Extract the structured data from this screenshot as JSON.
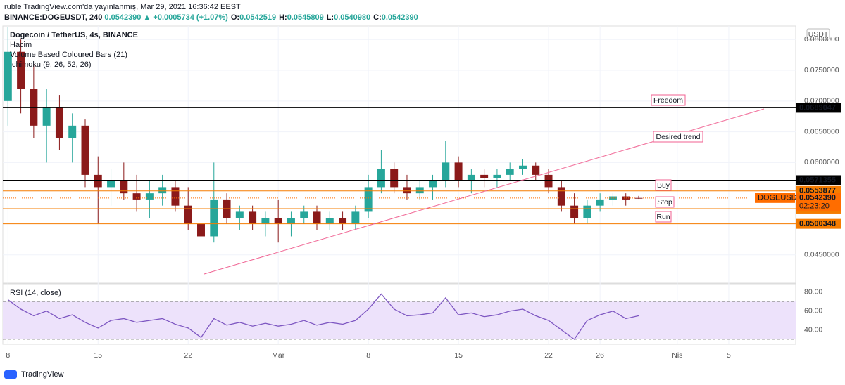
{
  "header": {
    "line1": "ruble TradingView.com'da yayınlanmış, Mar 29, 2021 16:36:42 EEST",
    "symbol": "BINANCE:DOGEUSDT, 240",
    "last": "0.0542390",
    "change": "▲ +0.0005734 (+1.07%)",
    "ohlc": [
      {
        "label": "O:",
        "value": "0.0542519"
      },
      {
        "label": "H:",
        "value": "0.0545809"
      },
      {
        "label": "L:",
        "value": "0.0540980"
      },
      {
        "label": "C:",
        "value": "0.0542390"
      }
    ]
  },
  "legend": [
    "Dogecoin / TetherUS, 4s, BINANCE",
    "Hacim",
    "Volume Based Coloured Bars (21)",
    "Ichimoku (9, 26, 52, 26)"
  ],
  "currency": "USDT",
  "annotations": [
    "Freedom",
    "Desired trend",
    "Buy",
    "Stop",
    "Run"
  ],
  "footer": "TradingView",
  "chart_data": [
    {
      "type": "candlestick",
      "up_color": "#26a69a",
      "down_color": "#8b1a1a",
      "x": [
        0,
        1,
        2,
        3,
        4,
        5,
        6,
        7,
        8,
        9,
        10,
        11,
        12,
        13,
        14,
        15,
        16,
        17,
        18,
        19,
        20,
        21,
        22,
        23,
        24,
        25,
        26,
        27,
        28,
        29,
        30,
        31,
        32,
        33,
        34,
        35,
        36,
        37,
        38,
        39,
        40,
        41,
        42,
        43,
        44,
        45,
        46,
        47,
        48,
        49
      ],
      "open": [
        0.07,
        0.078,
        0.072,
        0.066,
        0.069,
        0.064,
        0.066,
        0.058,
        0.056,
        0.057,
        0.055,
        0.054,
        0.055,
        0.056,
        0.053,
        0.05,
        0.048,
        0.054,
        0.051,
        0.052,
        0.05,
        0.051,
        0.05,
        0.051,
        0.052,
        0.05,
        0.051,
        0.05,
        0.052,
        0.056,
        0.059,
        0.056,
        0.055,
        0.056,
        0.057,
        0.06,
        0.057,
        0.058,
        0.0575,
        0.058,
        0.059,
        0.0595,
        0.058,
        0.056,
        0.053,
        0.051,
        0.053,
        0.054,
        0.0545,
        0.0542519
      ],
      "high": [
        0.082,
        0.08,
        0.076,
        0.072,
        0.071,
        0.068,
        0.067,
        0.061,
        0.059,
        0.06,
        0.058,
        0.057,
        0.058,
        0.057,
        0.056,
        0.052,
        0.06,
        0.055,
        0.053,
        0.053,
        0.052,
        0.054,
        0.052,
        0.053,
        0.053,
        0.052,
        0.052,
        0.053,
        0.058,
        0.062,
        0.06,
        0.058,
        0.057,
        0.058,
        0.0635,
        0.061,
        0.059,
        0.059,
        0.059,
        0.06,
        0.0605,
        0.06,
        0.059,
        0.057,
        0.055,
        0.054,
        0.055,
        0.055,
        0.055,
        0.0545809
      ],
      "low": [
        0.066,
        0.068,
        0.064,
        0.06,
        0.062,
        0.06,
        0.056,
        0.05,
        0.053,
        0.054,
        0.052,
        0.051,
        0.053,
        0.052,
        0.049,
        0.043,
        0.047,
        0.05,
        0.049,
        0.049,
        0.048,
        0.047,
        0.048,
        0.05,
        0.049,
        0.049,
        0.049,
        0.049,
        0.051,
        0.055,
        0.055,
        0.054,
        0.054,
        0.054,
        0.056,
        0.056,
        0.055,
        0.056,
        0.056,
        0.057,
        0.058,
        0.057,
        0.055,
        0.052,
        0.05,
        0.05,
        0.052,
        0.053,
        0.053,
        0.054098
      ],
      "close": [
        0.078,
        0.072,
        0.066,
        0.069,
        0.064,
        0.066,
        0.058,
        0.056,
        0.057,
        0.055,
        0.054,
        0.055,
        0.056,
        0.053,
        0.05,
        0.048,
        0.054,
        0.051,
        0.052,
        0.05,
        0.051,
        0.05,
        0.051,
        0.052,
        0.05,
        0.051,
        0.05,
        0.052,
        0.056,
        0.059,
        0.056,
        0.055,
        0.056,
        0.057,
        0.06,
        0.057,
        0.058,
        0.0575,
        0.058,
        0.059,
        0.0595,
        0.058,
        0.056,
        0.053,
        0.051,
        0.053,
        0.054,
        0.0545,
        0.054,
        0.054239
      ],
      "xlim": [
        -0.4,
        61.2
      ],
      "xticks": [
        {
          "value": 0,
          "label": "8"
        },
        {
          "value": 7,
          "label": "15"
        },
        {
          "value": 14,
          "label": "22"
        },
        {
          "value": 21,
          "label": "Mar"
        },
        {
          "value": 28,
          "label": "8"
        },
        {
          "value": 35,
          "label": "15"
        },
        {
          "value": 42,
          "label": "22"
        },
        {
          "value": 46,
          "label": "26"
        },
        {
          "value": 52,
          "label": "Nis"
        },
        {
          "value": 56,
          "label": "5"
        }
      ],
      "ylim": [
        0.0404,
        0.0822
      ],
      "yticks": [
        {
          "value": 0.045,
          "label": "0.0450000"
        },
        {
          "value": 0.06,
          "label": "0.0600000"
        },
        {
          "value": 0.065,
          "label": "0.0650000"
        },
        {
          "value": 0.07,
          "label": "0.0700000"
        },
        {
          "value": 0.075,
          "label": "0.0750000"
        },
        {
          "value": 0.08,
          "label": "0.0800000"
        }
      ],
      "grid": true,
      "levels": [
        {
          "value": 0.0689047,
          "color": "#000000"
        },
        {
          "value": 0.0571355,
          "color": "#000000"
        },
        {
          "value": 0.0553877,
          "color": "#f57c00"
        },
        {
          "value": 0.0525109,
          "color": "#f57c00"
        },
        {
          "value": 0.0500348,
          "color": "#f57c00"
        }
      ],
      "last_price": {
        "value": 0.054239,
        "label": "0.0542390",
        "symbol": "DOGEUSDT",
        "countdown": "02:23:20",
        "color": "#ff6d00"
      }
    },
    {
      "type": "line",
      "title": "RSI (14, close)",
      "color": "#7e57c2",
      "x": [
        0,
        1,
        2,
        3,
        4,
        5,
        6,
        7,
        8,
        9,
        10,
        11,
        12,
        13,
        14,
        15,
        16,
        17,
        18,
        19,
        20,
        21,
        22,
        23,
        24,
        25,
        26,
        27,
        28,
        29,
        30,
        31,
        32,
        33,
        34,
        35,
        36,
        37,
        38,
        39,
        40,
        41,
        42,
        43,
        44,
        45,
        46,
        47,
        48,
        49
      ],
      "values": [
        72,
        62,
        55,
        60,
        52,
        56,
        48,
        42,
        50,
        52,
        48,
        50,
        52,
        46,
        42,
        32,
        52,
        45,
        48,
        44,
        47,
        44,
        46,
        50,
        45,
        48,
        46,
        50,
        62,
        78,
        62,
        55,
        56,
        58,
        74,
        56,
        58,
        54,
        56,
        60,
        62,
        55,
        50,
        40,
        30,
        50,
        56,
        60,
        52,
        55
      ],
      "ylim": [
        24.8,
        88.8
      ],
      "yticks": [
        {
          "value": 40,
          "label": "40.00"
        },
        {
          "value": 60,
          "label": "60.00"
        },
        {
          "value": 80,
          "label": "80.00"
        }
      ],
      "band": [
        30,
        70
      ],
      "band_color": "#ede2fb"
    }
  ]
}
